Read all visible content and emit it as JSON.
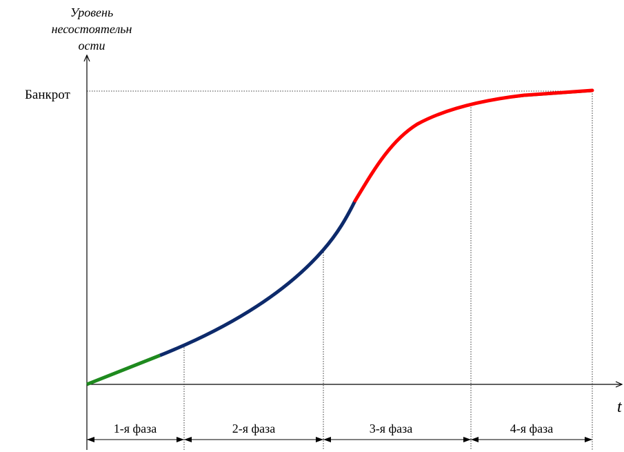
{
  "y_axis": {
    "label_lines": [
      "Уровень",
      "несостоятельн",
      "ости"
    ]
  },
  "x_axis": {
    "label": "t"
  },
  "bankrupt_label": "Банкрот",
  "phases": [
    {
      "label": "1-я фаза"
    },
    {
      "label": "2-я фаза"
    },
    {
      "label": "3-я фаза"
    },
    {
      "label": "4-я фаза"
    }
  ],
  "colors": {
    "axes": "#000000",
    "guides": "#000000",
    "segment_phase1": "#1e8a1e",
    "segment_phase2": "#0d2a6b",
    "segment_phase3_4": "#ff0000",
    "segment_underlay": "#1e6b1e"
  }
}
